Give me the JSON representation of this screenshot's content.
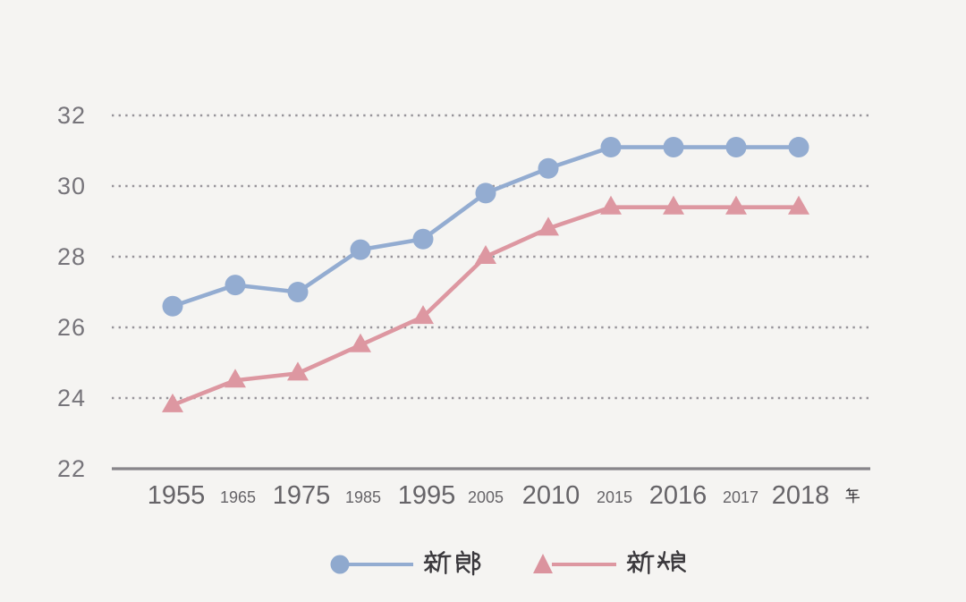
{
  "canvas": {
    "background": "#f5f4f2"
  },
  "chart_data": {
    "type": "line",
    "categories": [
      "1955",
      "1965",
      "1975",
      "1985",
      "1995",
      "2005",
      "2010",
      "2015",
      "2016",
      "2017",
      "2018"
    ],
    "x_unit": "年",
    "y_tick_labels": [
      "32",
      "30",
      "28",
      "26",
      "24",
      "22"
    ],
    "y_ticks": [
      32,
      30,
      28,
      26,
      24,
      22
    ],
    "ylim": [
      22,
      32
    ],
    "grid": "dotted-horizontal",
    "legend_position": "bottom",
    "series": [
      {
        "id": "groom",
        "name": "新郎",
        "marker": "circle",
        "color": "#93acd1",
        "values": [
          26.6,
          27.2,
          27.0,
          28.2,
          28.5,
          29.8,
          30.5,
          31.1,
          31.1,
          31.1,
          31.1
        ]
      },
      {
        "id": "bride",
        "name": "新娘",
        "marker": "triangle",
        "color": "#dd97a1",
        "values": [
          23.8,
          24.5,
          24.7,
          25.5,
          26.3,
          28.0,
          28.8,
          29.4,
          29.4,
          29.4,
          29.4
        ]
      }
    ]
  },
  "legend": {
    "groom_label": "新郎",
    "bride_label": "新娘"
  },
  "colors": {
    "groom_blue": "#93acd1",
    "bride_pink": "#dd97a1",
    "gridline_gray": "#97949a",
    "axis_gray": "#87858a",
    "tick_text_gray": "#6b696e",
    "legend_text_dark": "#3b393d",
    "background": "#f5f4f2"
  }
}
